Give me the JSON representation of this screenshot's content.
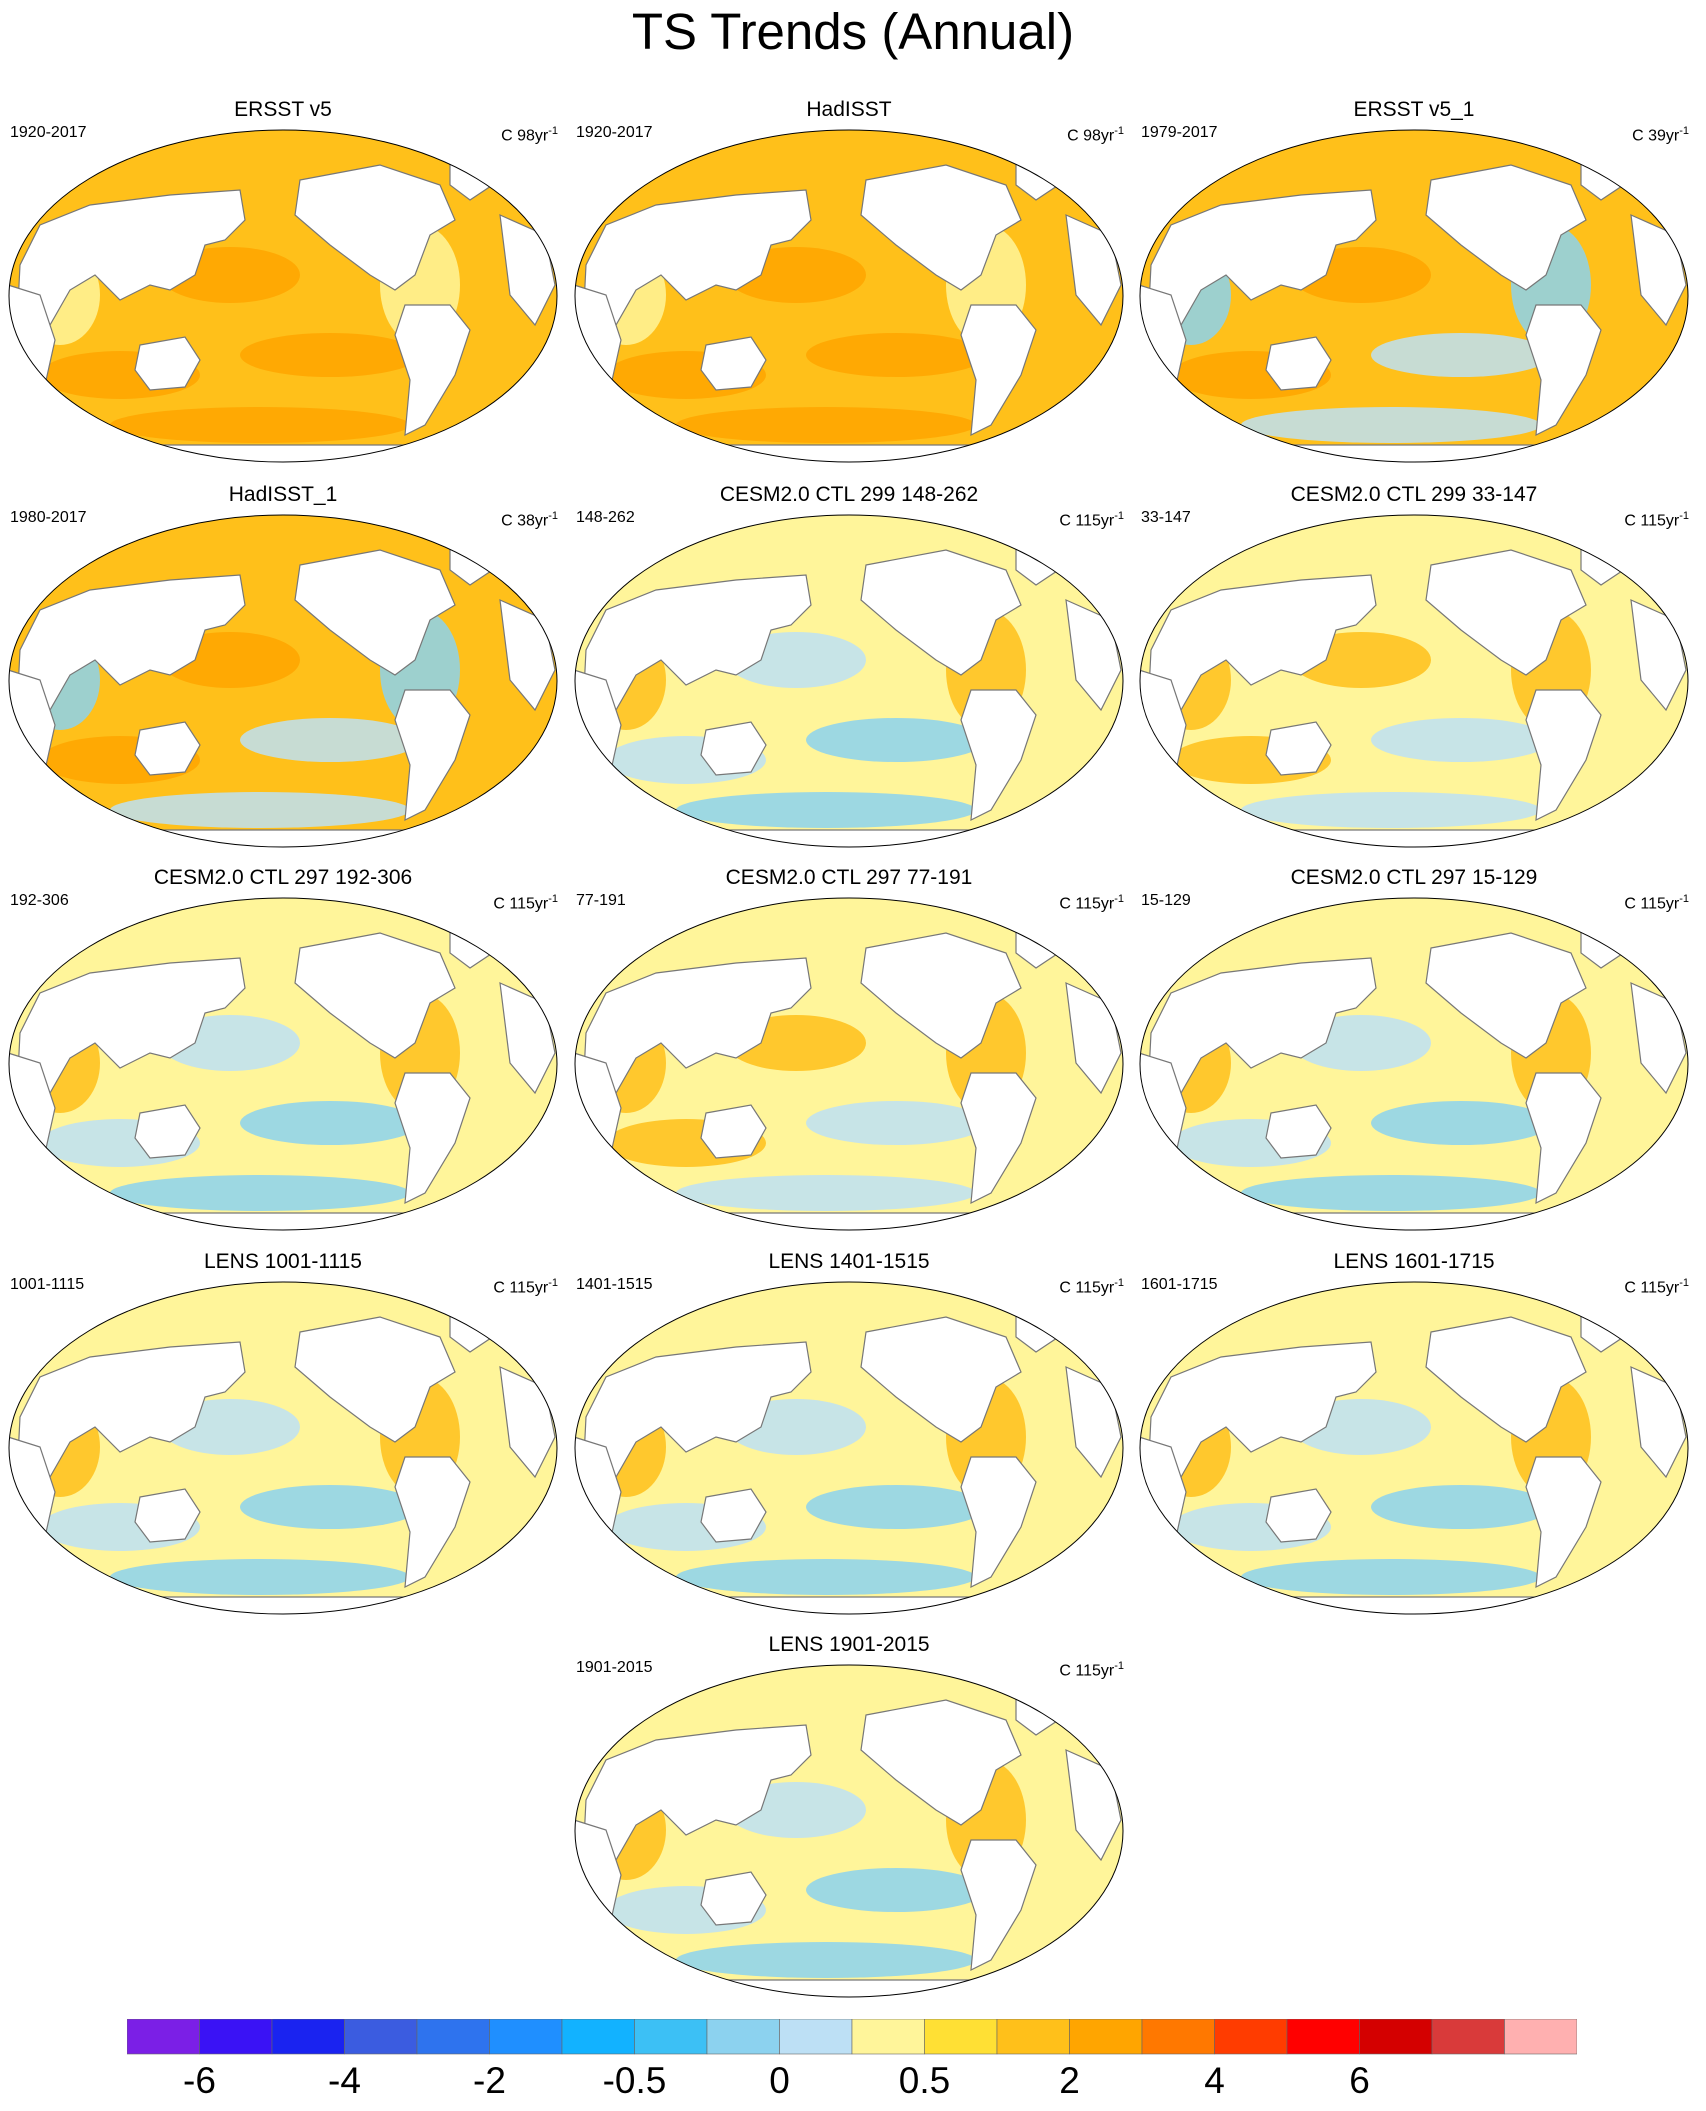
{
  "title": "TS Trends (Annual)",
  "panels": [
    {
      "title": "ERSST v5",
      "period": "1920-2017",
      "units_prefix": "C 98yr",
      "units_exp": "-1",
      "pattern": "warm-strong"
    },
    {
      "title": "HadISST",
      "period": "1920-2017",
      "units_prefix": "C 98yr",
      "units_exp": "-1",
      "pattern": "warm-strong"
    },
    {
      "title": "ERSST v5_1",
      "period": "1979-2017",
      "units_prefix": "C 39yr",
      "units_exp": "-1",
      "pattern": "warm-mixed"
    },
    {
      "title": "HadISST_1",
      "period": "1980-2017",
      "units_prefix": "C 38yr",
      "units_exp": "-1",
      "pattern": "warm-mixed"
    },
    {
      "title": "CESM2.0 CTL 299 148-262",
      "period": "148-262",
      "units_prefix": "C 115yr",
      "units_exp": "-1",
      "pattern": "neutral-cool"
    },
    {
      "title": "CESM2.0 CTL 299 33-147",
      "period": "33-147",
      "units_prefix": "C 115yr",
      "units_exp": "-1",
      "pattern": "neutral-warm"
    },
    {
      "title": "CESM2.0 CTL 297 192-306",
      "period": "192-306",
      "units_prefix": "C 115yr",
      "units_exp": "-1",
      "pattern": "neutral-cool"
    },
    {
      "title": "CESM2.0 CTL 297 77-191",
      "period": "77-191",
      "units_prefix": "C 115yr",
      "units_exp": "-1",
      "pattern": "neutral-warm"
    },
    {
      "title": "CESM2.0 CTL 297 15-129",
      "period": "15-129",
      "units_prefix": "C 115yr",
      "units_exp": "-1",
      "pattern": "neutral-cool"
    },
    {
      "title": "LENS 1001-1115",
      "period": "1001-1115",
      "units_prefix": "C 115yr",
      "units_exp": "-1",
      "pattern": "neutral-cool"
    },
    {
      "title": "LENS 1401-1515",
      "period": "1401-1515",
      "units_prefix": "C 115yr",
      "units_exp": "-1",
      "pattern": "neutral-cool"
    },
    {
      "title": "LENS 1601-1715",
      "period": "1601-1715",
      "units_prefix": "C 115yr",
      "units_exp": "-1",
      "pattern": "neutral-cool"
    },
    {
      "title": "LENS 1901-2015",
      "period": "1901-2015",
      "units_prefix": "C 115yr",
      "units_exp": "-1",
      "pattern": "neutral-cool"
    }
  ],
  "colorbar": {
    "colors": [
      "#7b1fe6",
      "#3a12f5",
      "#1a23f0",
      "#3b5ce0",
      "#2e73ee",
      "#1f8fff",
      "#12b2ff",
      "#3cc0f5",
      "#8cd2ef",
      "#bde0f5",
      "#fff59a",
      "#ffe034",
      "#ffc01a",
      "#ffa500",
      "#ff7800",
      "#ff3c00",
      "#ff0000",
      "#d40000",
      "#d93a3a",
      "#ffb0b0"
    ],
    "labels": [
      "-6",
      "-4",
      "-2",
      "-0.5",
      "0",
      "0.5",
      "2",
      "4",
      "6"
    ],
    "label_after_box": [
      1,
      3,
      5,
      7,
      9,
      11,
      13,
      15,
      17
    ]
  },
  "palette": {
    "ocean_warm": "#ffc01a",
    "ocean_warm_strong": "#ffa500",
    "ocean_neutral_warm": "#fff59a",
    "ocean_cool": "#bde0f5",
    "ocean_cold": "#8cd2ef",
    "land": "#ffffff",
    "coast": "#777777"
  }
}
